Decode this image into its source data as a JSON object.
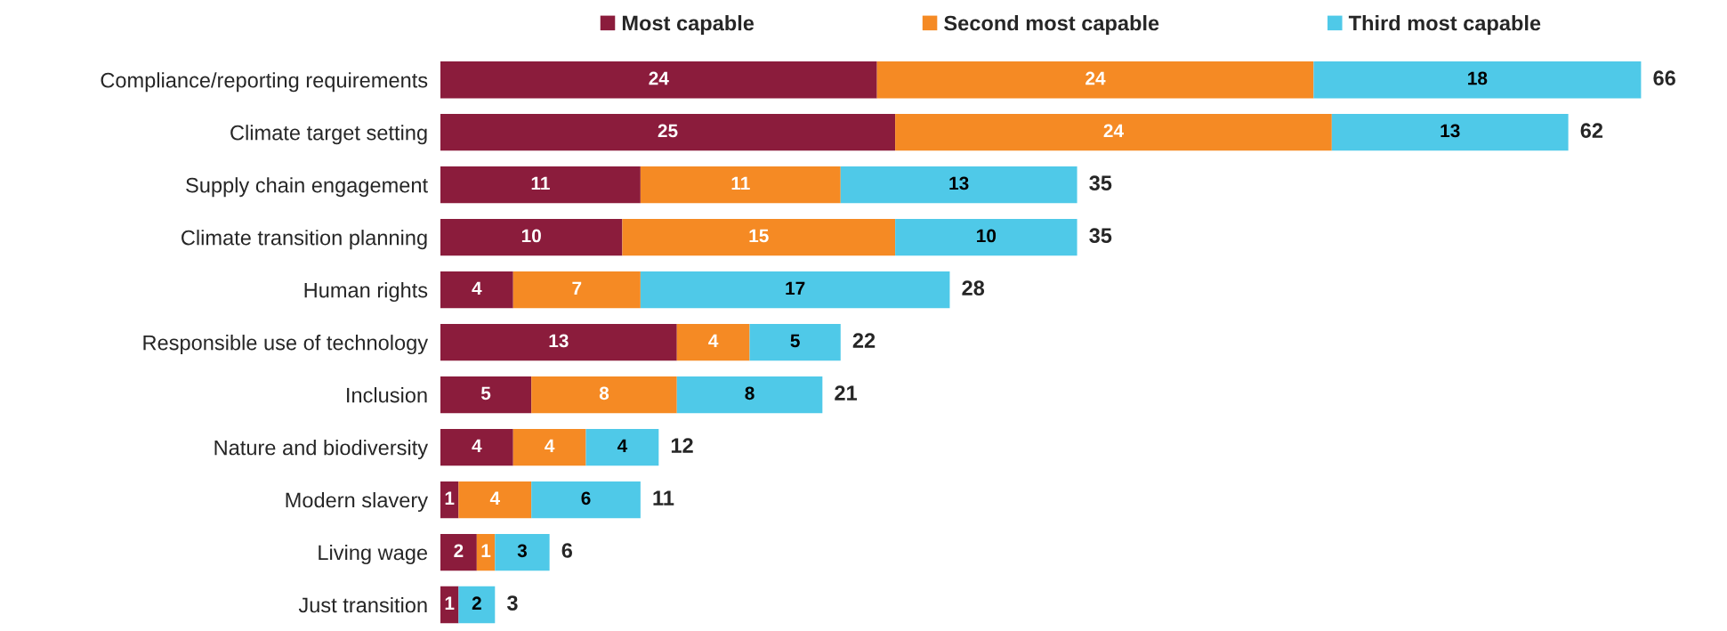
{
  "chart_data": {
    "type": "bar",
    "orientation": "horizontal",
    "stacked": true,
    "legend": "top",
    "tick_labels": "y",
    "categories": [
      "Compliance/reporting requirements",
      "Climate target setting",
      "Supply chain engagement",
      "Climate transition planning",
      "Human rights",
      "Responsible use of technology",
      "Inclusion",
      "Nature and biodiversity",
      "Modern slavery",
      "Living wage",
      "Just transition"
    ],
    "series": [
      {
        "name": "Most capable",
        "color": "#8b1c3c",
        "values": [
          24,
          25,
          11,
          10,
          4,
          13,
          5,
          4,
          1,
          2,
          1
        ],
        "value_labels": [
          "24",
          "25",
          "11",
          "10",
          "4",
          "13",
          "5",
          "4",
          "1",
          "2",
          "1"
        ]
      },
      {
        "name": "Second most capable",
        "color": "#f58a24",
        "values": [
          24,
          24,
          11,
          15,
          7,
          4,
          8,
          4,
          4,
          1,
          0
        ],
        "value_labels": [
          "24",
          "24",
          "11",
          "15",
          "7",
          "4",
          "8",
          "4",
          "4",
          "1",
          null
        ]
      },
      {
        "name": "Third most capable",
        "color": "#4fc9e8",
        "values": [
          18,
          13,
          13,
          10,
          17,
          5,
          8,
          4,
          6,
          3,
          2
        ],
        "value_labels": [
          "18",
          "13",
          "13",
          "10",
          "17",
          "5",
          "8",
          "4",
          "6",
          "3",
          "2"
        ]
      }
    ],
    "totals": [
      "66",
      "62",
      "35",
      "35",
      "28",
      "22",
      "21",
      "12",
      "11",
      "6",
      "3"
    ]
  }
}
